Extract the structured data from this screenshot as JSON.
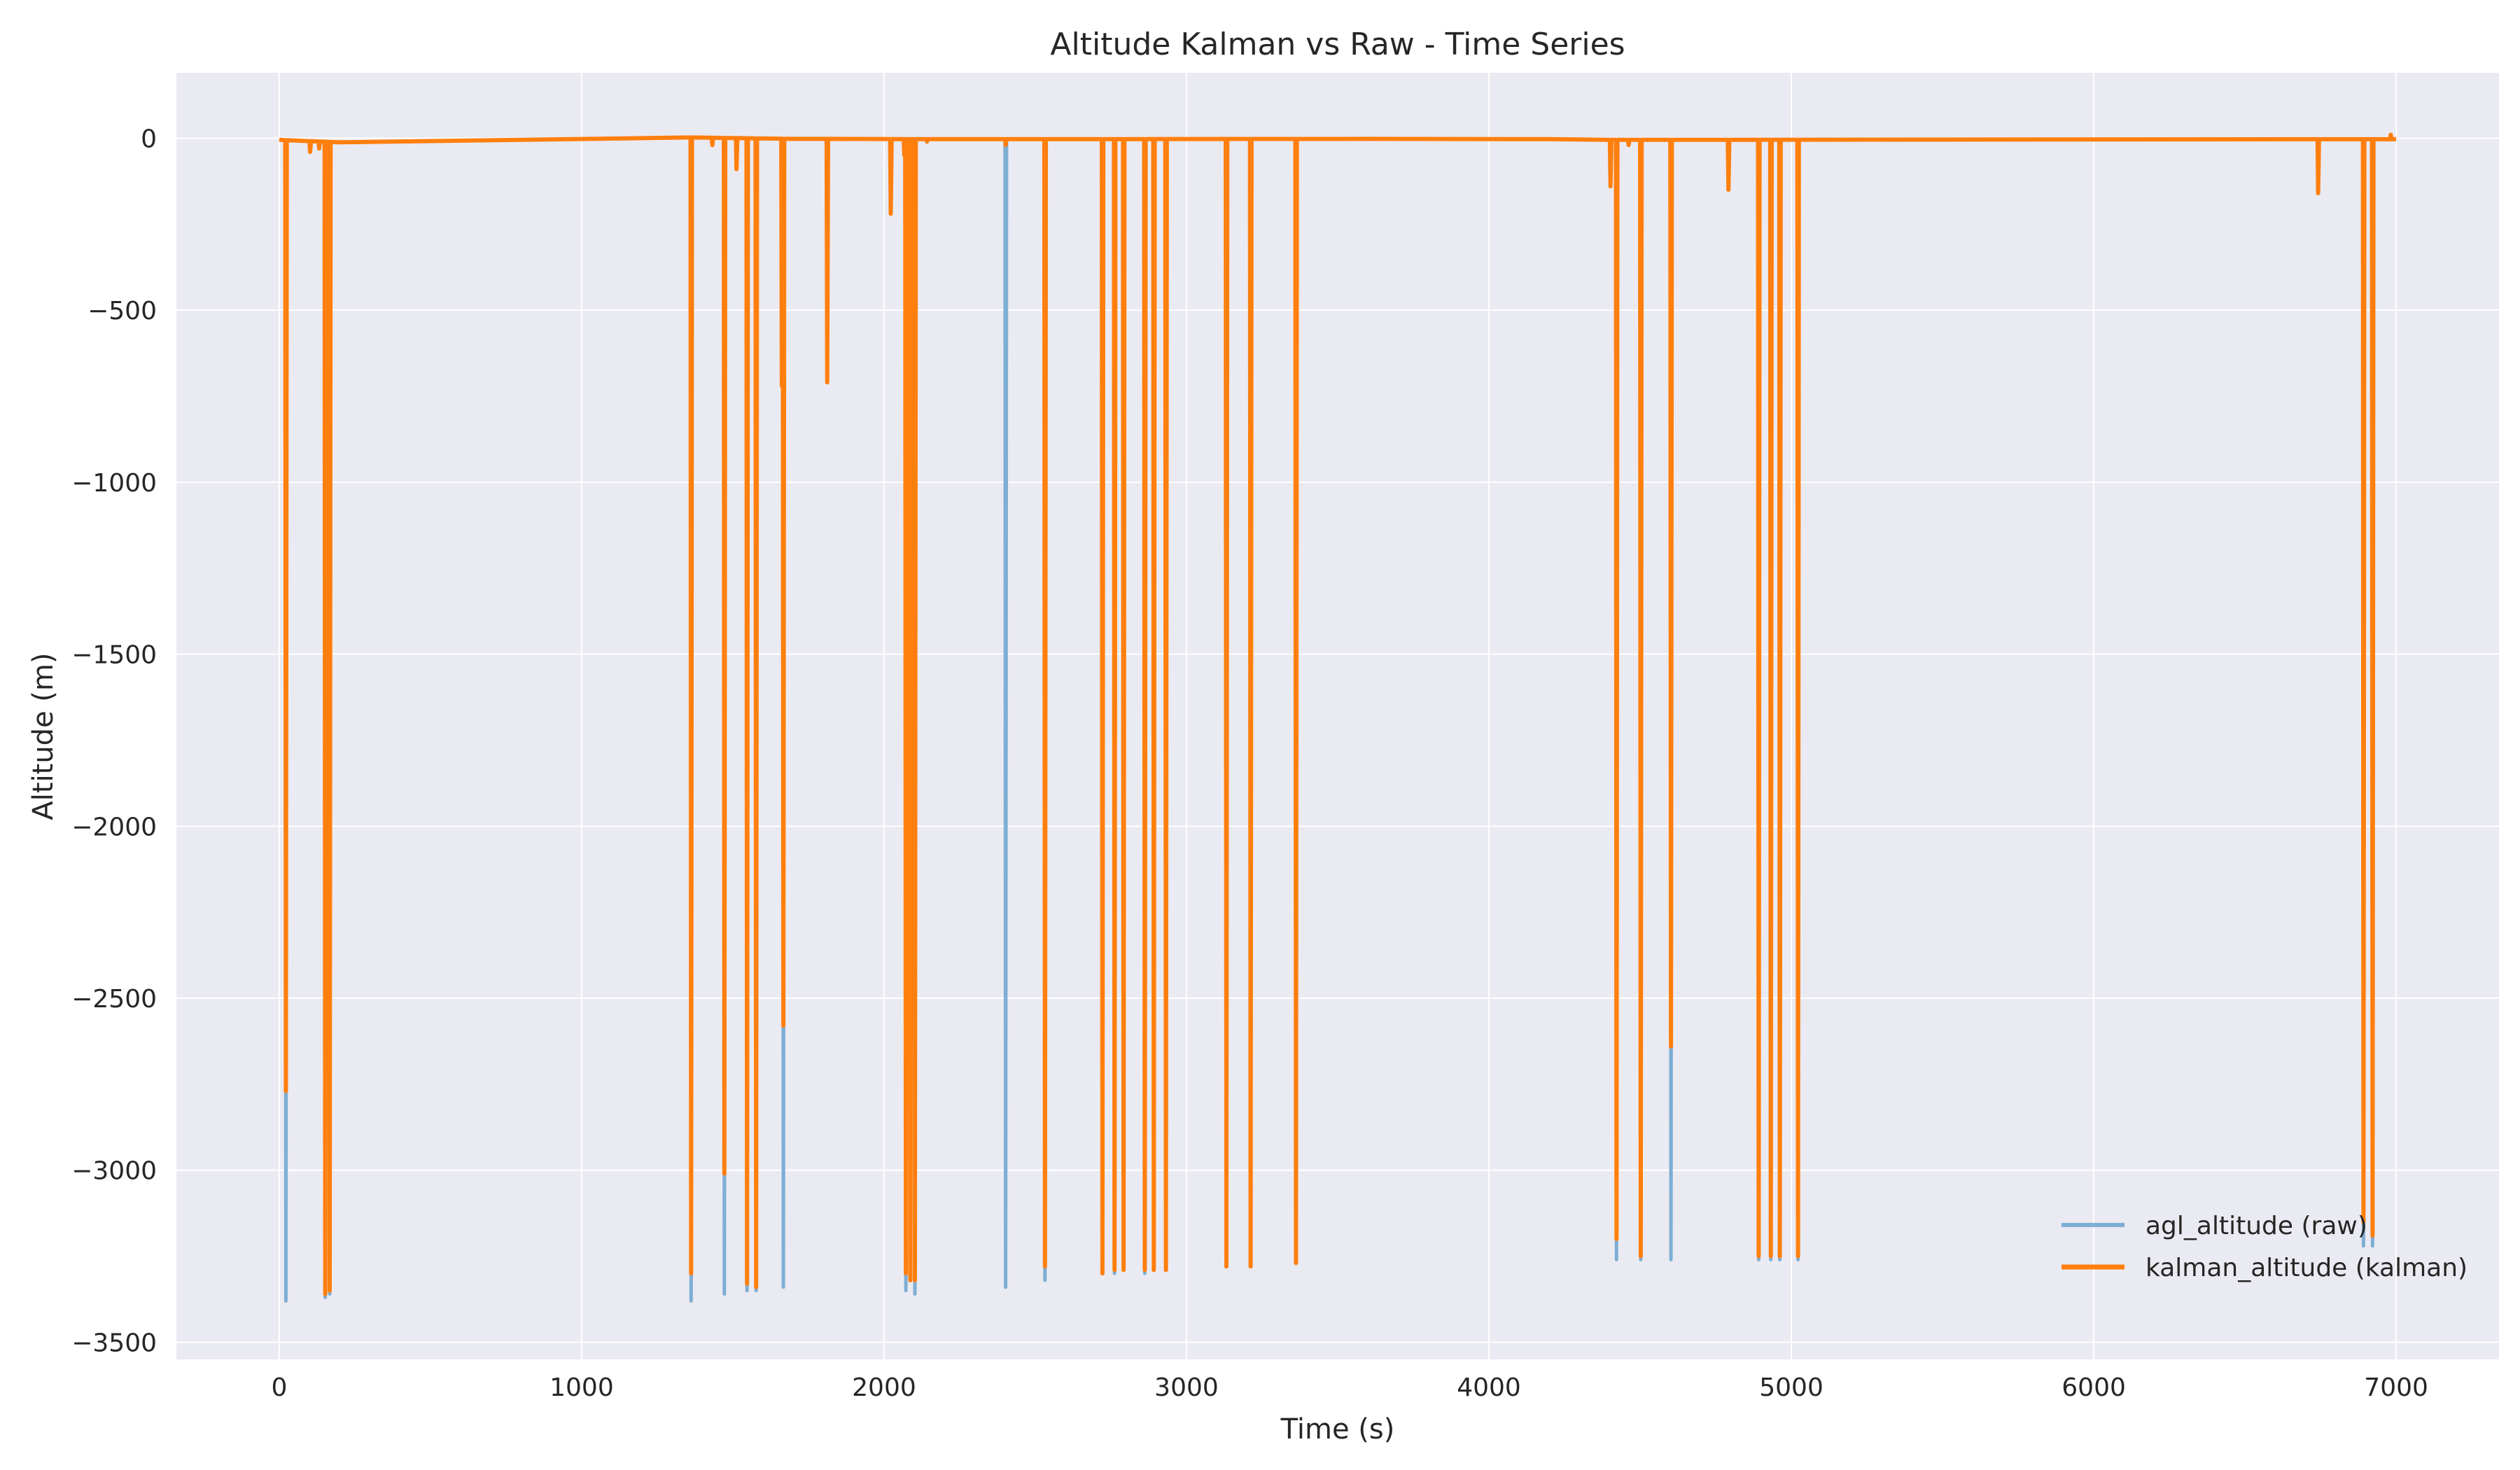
{
  "chart_data": {
    "type": "line",
    "title": "Altitude Kalman vs Raw - Time Series",
    "xlabel": "Time (s)",
    "ylabel": "Altitude (m)",
    "xlim": [
      -340,
      7340
    ],
    "ylim": [
      -3550,
      190
    ],
    "x_ticks": [
      0,
      1000,
      2000,
      3000,
      4000,
      5000,
      6000,
      7000
    ],
    "y_ticks": [
      0,
      -500,
      -1000,
      -1500,
      -2000,
      -2500,
      -3000,
      -3500
    ],
    "x_tick_labels": [
      "0",
      "1000",
      "2000",
      "3000",
      "4000",
      "5000",
      "6000",
      "7000"
    ],
    "y_tick_labels": [
      "0",
      "−500",
      "−1000",
      "−1500",
      "−2000",
      "−2500",
      "−3000",
      "−3500"
    ],
    "grid": true,
    "legend_position": "bottom-right",
    "colors": {
      "raw": "#7eaed4",
      "kalman": "#ff7f0e",
      "plot_bg": "#eaeaf2",
      "grid": "#ffffff"
    },
    "series": [
      {
        "name": "agl_altitude (raw)",
        "key": "raw",
        "baseline": [
          [
            0,
            -5
          ],
          [
            200,
            -12
          ],
          [
            800,
            -5
          ],
          [
            1350,
            2
          ],
          [
            1700,
            -2
          ],
          [
            2300,
            -3
          ],
          [
            2400,
            -3
          ],
          [
            3600,
            -2
          ],
          [
            4200,
            -3
          ],
          [
            4400,
            -5
          ],
          [
            7000,
            -3
          ]
        ],
        "spikes": [
          [
            20,
            -3380
          ],
          [
            150,
            -3370
          ],
          [
            165,
            -3360
          ],
          [
            1360,
            -3380
          ],
          [
            1470,
            -3360
          ],
          [
            1545,
            -3350
          ],
          [
            1575,
            -3350
          ],
          [
            1665,
            -3340
          ],
          [
            2070,
            -3350
          ],
          [
            2100,
            -3360
          ],
          [
            2400,
            -3340
          ],
          [
            2530,
            -3320
          ],
          [
            2720,
            -3300
          ],
          [
            2760,
            -3300
          ],
          [
            2790,
            -3290
          ],
          [
            2860,
            -3300
          ],
          [
            2890,
            -3290
          ],
          [
            2930,
            -3290
          ],
          [
            3130,
            -3280
          ],
          [
            3210,
            -3280
          ],
          [
            3360,
            -3270
          ],
          [
            4420,
            -3260
          ],
          [
            4500,
            -3260
          ],
          [
            4600,
            -3260
          ],
          [
            4890,
            -3260
          ],
          [
            4930,
            -3260
          ],
          [
            4960,
            -3260
          ],
          [
            5020,
            -3260
          ],
          [
            6890,
            -3220
          ],
          [
            6920,
            -3220
          ]
        ]
      },
      {
        "name": "kalman_altitude (kalman)",
        "key": "kalman",
        "baseline": [
          [
            0,
            -5
          ],
          [
            200,
            -12
          ],
          [
            800,
            -5
          ],
          [
            1350,
            2
          ],
          [
            1700,
            -2
          ],
          [
            2300,
            -3
          ],
          [
            2400,
            -3
          ],
          [
            3600,
            -2
          ],
          [
            4200,
            -3
          ],
          [
            4400,
            -5
          ],
          [
            7000,
            -3
          ]
        ],
        "spikes": [
          [
            20,
            -2770
          ],
          [
            100,
            -40
          ],
          [
            130,
            -30
          ],
          [
            150,
            -3360
          ],
          [
            165,
            -3350
          ],
          [
            1360,
            -3300
          ],
          [
            1430,
            -20
          ],
          [
            1470,
            -3010
          ],
          [
            1510,
            -90
          ],
          [
            1545,
            -3330
          ],
          [
            1575,
            -3340
          ],
          [
            1660,
            -720
          ],
          [
            1665,
            -2580
          ],
          [
            1810,
            -710
          ],
          [
            2020,
            -220
          ],
          [
            2065,
            -50
          ],
          [
            2070,
            -3300
          ],
          [
            2085,
            -3320
          ],
          [
            2100,
            -3320
          ],
          [
            2140,
            -10
          ],
          [
            2400,
            -20
          ],
          [
            2530,
            -3280
          ],
          [
            2720,
            -3300
          ],
          [
            2760,
            -3290
          ],
          [
            2790,
            -3290
          ],
          [
            2860,
            -3290
          ],
          [
            2890,
            -3290
          ],
          [
            2930,
            -3290
          ],
          [
            3130,
            -3280
          ],
          [
            3210,
            -3280
          ],
          [
            3360,
            -3270
          ],
          [
            4400,
            -140
          ],
          [
            4420,
            -3200
          ],
          [
            4460,
            -20
          ],
          [
            4500,
            -3250
          ],
          [
            4600,
            -2640
          ],
          [
            4790,
            -150
          ],
          [
            4890,
            -3250
          ],
          [
            4930,
            -3250
          ],
          [
            4960,
            -3250
          ],
          [
            5020,
            -3250
          ],
          [
            6740,
            -160
          ],
          [
            6890,
            -3150
          ],
          [
            6920,
            -3190
          ],
          [
            6980,
            10
          ]
        ]
      }
    ]
  }
}
